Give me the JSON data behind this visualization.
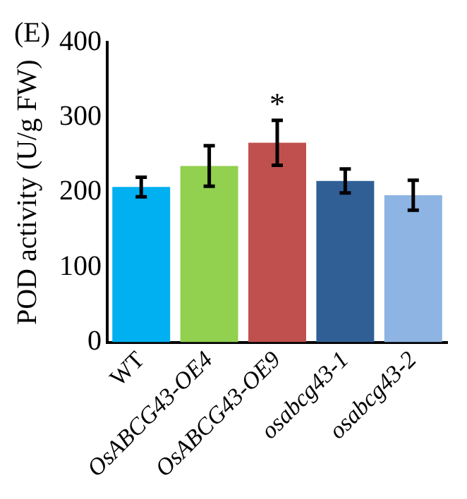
{
  "chart_data": {
    "type": "bar",
    "title": "(E)",
    "ylabel": "POD activity (U/g FW)",
    "categories": [
      "WT",
      "OsABCG43-OE4",
      "OsABCG43-OE9",
      "osabcg43-1",
      "osabcg43-2"
    ],
    "values": [
      207,
      235,
      266,
      215,
      196
    ],
    "colors": [
      "#00b0f0",
      "#92d050",
      "#c0504d",
      "#305f96",
      "#8db4e2"
    ],
    "errors": [
      13,
      27,
      30,
      16,
      20
    ],
    "annotations": [
      {
        "text": "*",
        "x": "OsABCG43-OE9",
        "y": 296
      }
    ],
    "ylim": [
      0,
      400
    ],
    "yticks": [
      0,
      100,
      200,
      300,
      400
    ],
    "grid": false,
    "legend": false
  }
}
